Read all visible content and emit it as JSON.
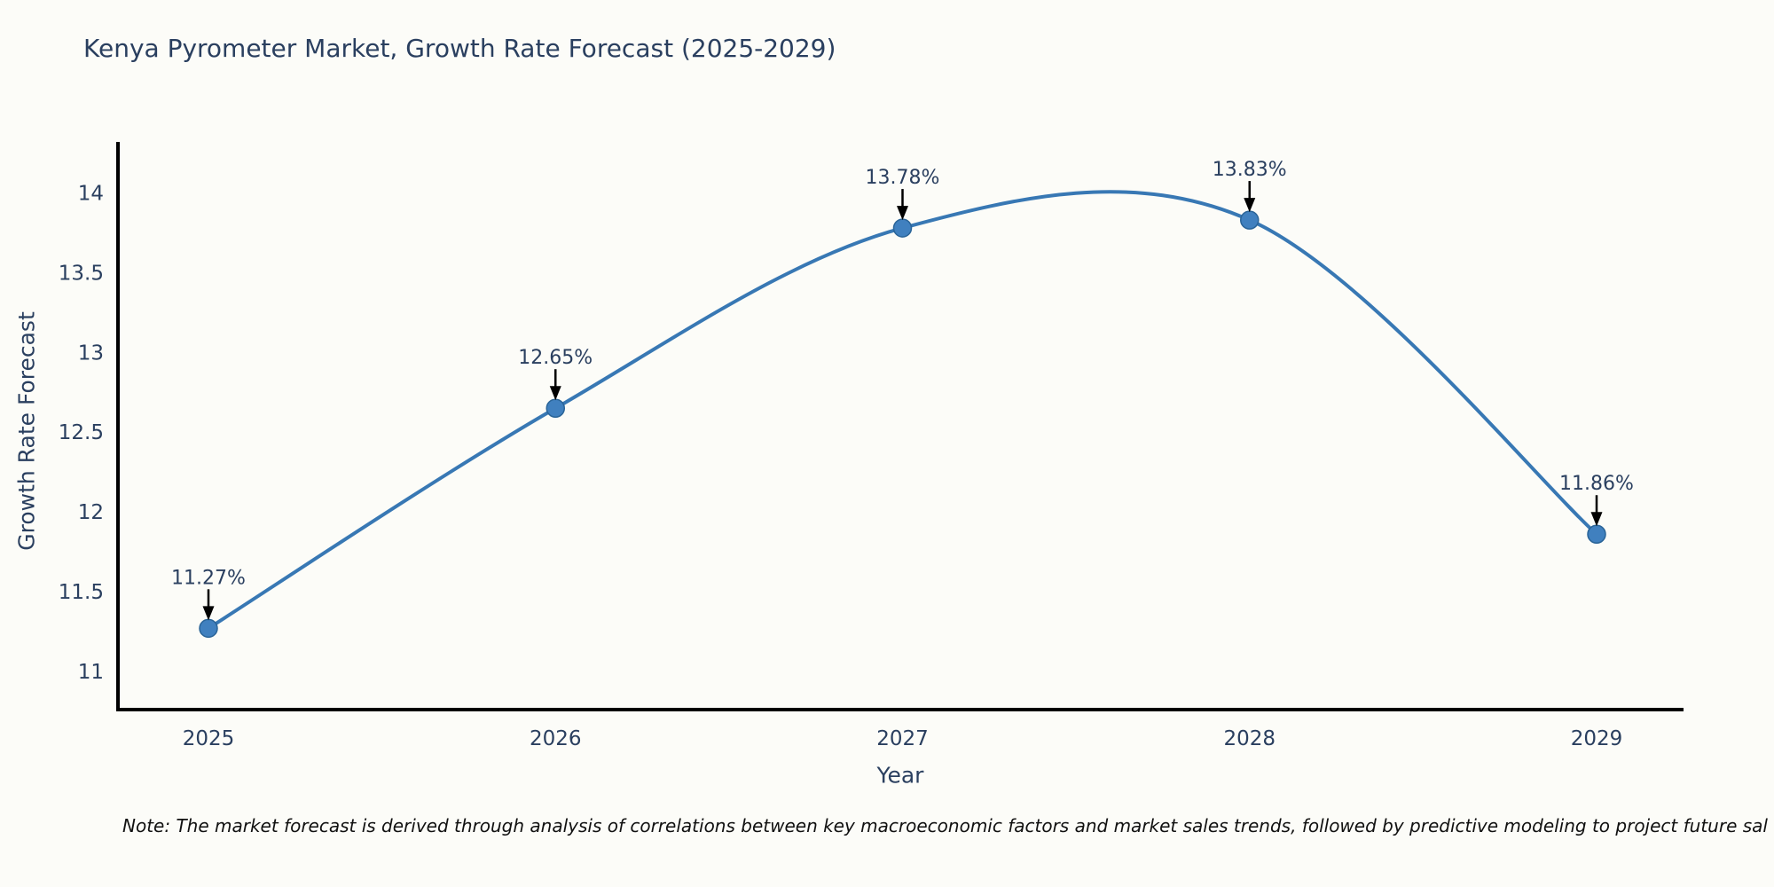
{
  "page": {
    "background": "#fcfcf8"
  },
  "note": {
    "text": "Note: The market forecast is derived through analysis of correlations between key macroeconomic factors and market sales trends, followed by predictive modeling to project future sal"
  },
  "chart_data": {
    "type": "line",
    "title": "Kenya Pyrometer Market, Growth Rate Forecast (2025-2029)",
    "xlabel": "Year",
    "ylabel": "Growth Rate Forecast",
    "categories": [
      "2025",
      "2026",
      "2027",
      "2028",
      "2029"
    ],
    "series": [
      {
        "name": "Growth Rate Forecast",
        "values": [
          11.27,
          12.65,
          13.78,
          13.83,
          11.86
        ]
      }
    ],
    "point_labels": [
      "11.27%",
      "12.65%",
      "13.78%",
      "13.83%",
      "11.86%"
    ],
    "y_ticks": [
      11,
      11.5,
      12,
      12.5,
      13,
      13.5,
      14
    ],
    "ylim": [
      10.76,
      14.32
    ],
    "line_shape": "spline",
    "grid": false,
    "legend_position": "none",
    "annotations_have_arrows": true,
    "colors": {
      "line": "#3878b4",
      "marker_fill": "#4080bf",
      "marker_edge": "#2a6498",
      "axis": "#000000",
      "text": "#2a3f5f",
      "arrow": "#000000",
      "note_text": "#111111",
      "background": "#fcfcf8"
    }
  }
}
